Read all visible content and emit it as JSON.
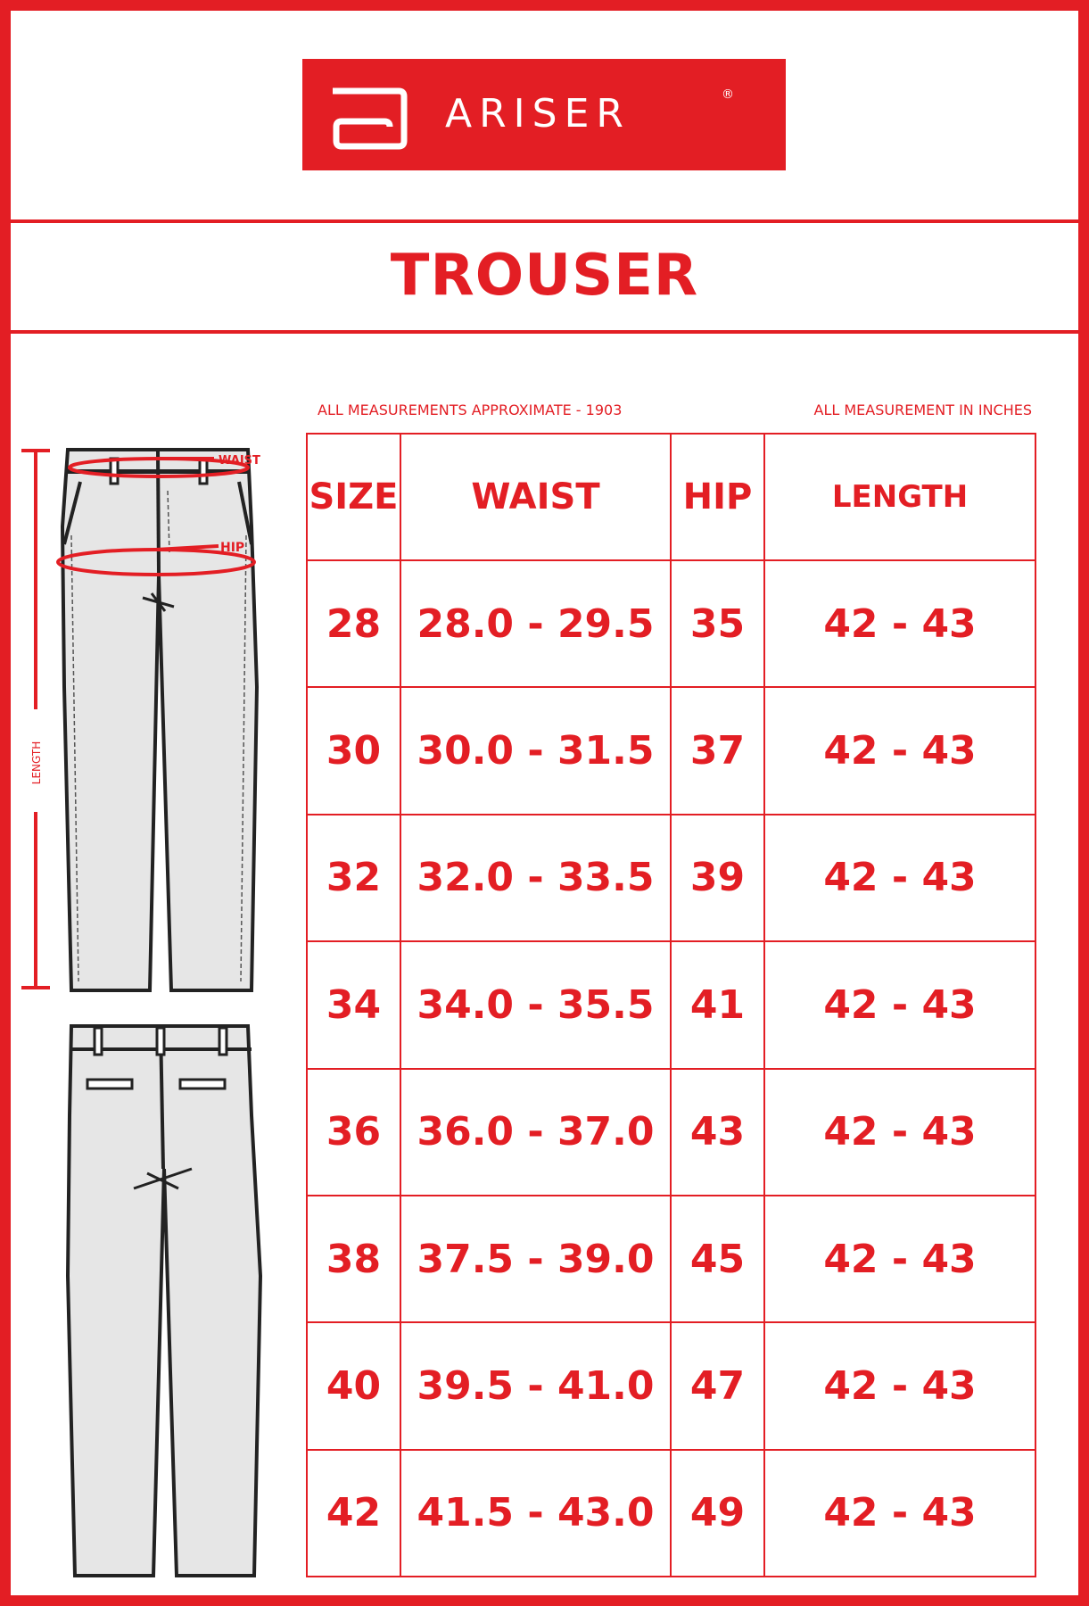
{
  "brand": {
    "name": "ARISER",
    "registered": "®",
    "color": "#e31e24"
  },
  "title": "TROUSER",
  "notes": {
    "left": "ALL MEASUREMENTS APPROXIMATE - 1903",
    "right": "ALL MEASUREMENT IN INCHES"
  },
  "diagram": {
    "waist_label": "WAIST",
    "hip_label": "HIP",
    "length_label": "LENGTH"
  },
  "table": {
    "headers": [
      "SIZE",
      "WAIST",
      "HIP",
      "LENGTH"
    ],
    "rows": [
      [
        "28",
        "28.0 - 29.5",
        "35",
        "42 - 43"
      ],
      [
        "30",
        "30.0 - 31.5",
        "37",
        "42 - 43"
      ],
      [
        "32",
        "32.0 - 33.5",
        "39",
        "42 - 43"
      ],
      [
        "34",
        "34.0 - 35.5",
        "41",
        "42 - 43"
      ],
      [
        "36",
        "36.0 - 37.0",
        "43",
        "42 - 43"
      ],
      [
        "38",
        "37.5 - 39.0",
        "45",
        "42 - 43"
      ],
      [
        "40",
        "39.5 - 41.0",
        "47",
        "42 - 43"
      ],
      [
        "42",
        "41.5 - 43.0",
        "49",
        "42 - 43"
      ]
    ]
  }
}
